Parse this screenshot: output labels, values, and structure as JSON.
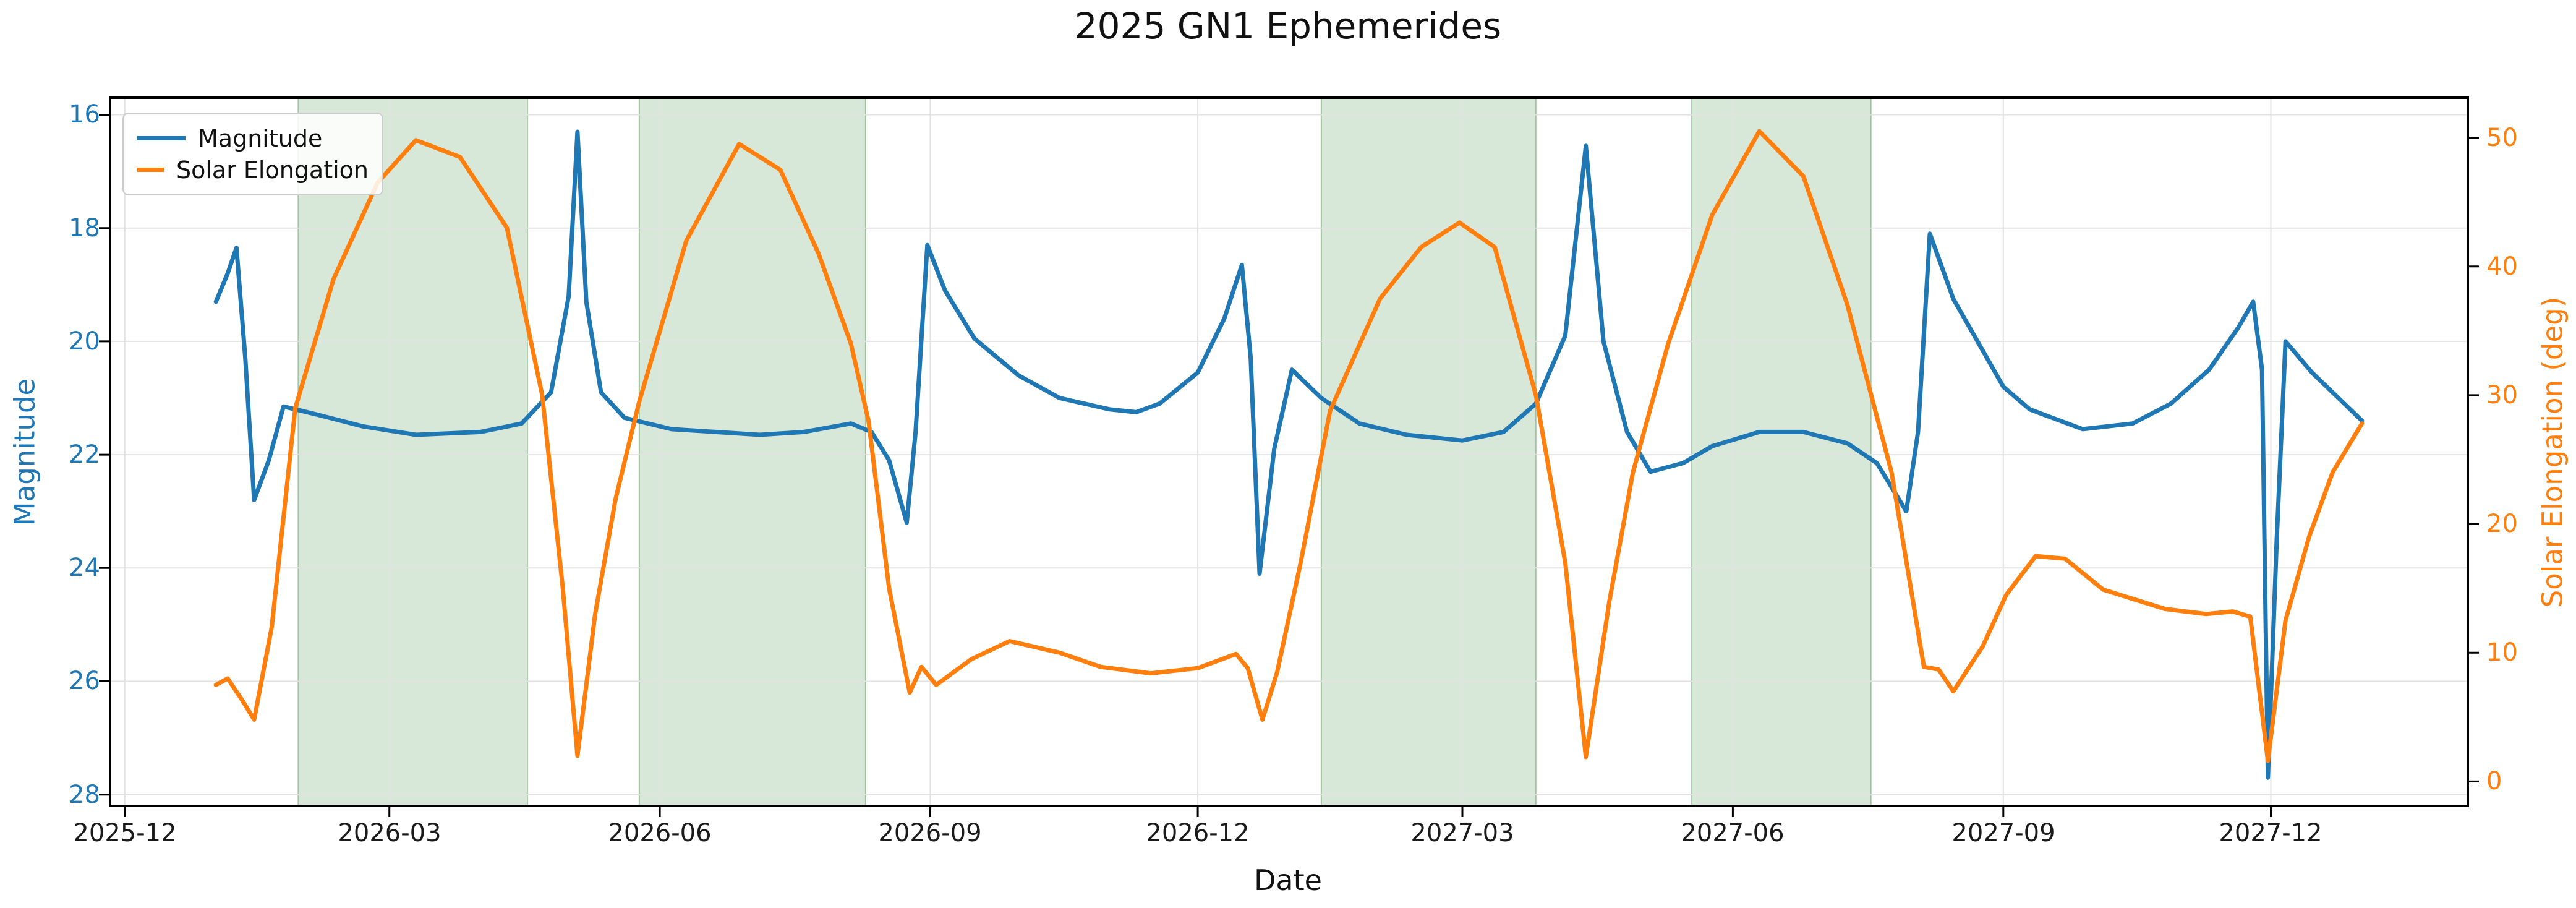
{
  "chart_data": {
    "type": "line",
    "title": "2025 GN1 Ephemerides",
    "xlabel": "Date",
    "ylabel_left": "Magnitude",
    "ylabel_right": "Solar Elongation (deg)",
    "legend": [
      "Magnitude",
      "Solar Elongation"
    ],
    "legend_position": "upper left",
    "grid": true,
    "colors": {
      "magnitude_line": "#1f77b4",
      "elongation_line": "#ff7f0e",
      "observing_window_fill": "rgba(60,140,60,0.20)",
      "observing_window_edge": "rgba(60,140,60,0.40)",
      "gridline": "#e2e2e2",
      "spine": "#000000"
    },
    "x_domain": [
      "2025-11-26",
      "2028-02-06"
    ],
    "x_ticks": [
      {
        "date": "2025-12-01",
        "label": "2025-12"
      },
      {
        "date": "2026-03-01",
        "label": "2026-03"
      },
      {
        "date": "2026-06-01",
        "label": "2026-06"
      },
      {
        "date": "2026-09-01",
        "label": "2026-09"
      },
      {
        "date": "2026-12-01",
        "label": "2026-12"
      },
      {
        "date": "2027-03-01",
        "label": "2027-03"
      },
      {
        "date": "2027-06-01",
        "label": "2027-06"
      },
      {
        "date": "2027-09-01",
        "label": "2027-09"
      },
      {
        "date": "2027-12-01",
        "label": "2027-12"
      }
    ],
    "mag_axis": {
      "top_value": 15.7,
      "bottom_value": 28.2,
      "inverted": true,
      "ticks": [
        16,
        18,
        20,
        22,
        24,
        26,
        28
      ]
    },
    "elong_axis": {
      "top_value": 53.1,
      "bottom_value": -1.9,
      "ticks": [
        0,
        10,
        20,
        30,
        40,
        50
      ]
    },
    "observing_windows": [
      [
        "2026-01-29",
        "2026-04-17"
      ],
      [
        "2026-05-25",
        "2026-08-10"
      ],
      [
        "2027-01-12",
        "2027-03-26"
      ],
      [
        "2027-05-18",
        "2027-07-18"
      ]
    ],
    "series": [
      {
        "name": "Magnitude",
        "axis": "left",
        "color": "#1f77b4",
        "points": [
          [
            "2026-01-01",
            19.3
          ],
          [
            "2026-01-05",
            18.8
          ],
          [
            "2026-01-08",
            18.35
          ],
          [
            "2026-01-11",
            20.3
          ],
          [
            "2026-01-14",
            22.8
          ],
          [
            "2026-01-19",
            22.1
          ],
          [
            "2026-01-24",
            21.15
          ],
          [
            "2026-02-05",
            21.3
          ],
          [
            "2026-02-20",
            21.5
          ],
          [
            "2026-03-10",
            21.65
          ],
          [
            "2026-04-01",
            21.6
          ],
          [
            "2026-04-15",
            21.45
          ],
          [
            "2026-04-25",
            20.9
          ],
          [
            "2026-05-01",
            19.2
          ],
          [
            "2026-05-04",
            16.3
          ],
          [
            "2026-05-07",
            19.3
          ],
          [
            "2026-05-12",
            20.9
          ],
          [
            "2026-05-20",
            21.35
          ],
          [
            "2026-06-05",
            21.55
          ],
          [
            "2026-06-20",
            21.6
          ],
          [
            "2026-07-05",
            21.65
          ],
          [
            "2026-07-20",
            21.6
          ],
          [
            "2026-08-05",
            21.45
          ],
          [
            "2026-08-12",
            21.6
          ],
          [
            "2026-08-18",
            22.1
          ],
          [
            "2026-08-24",
            23.2
          ],
          [
            "2026-08-27",
            21.6
          ],
          [
            "2026-08-31",
            18.3
          ],
          [
            "2026-09-06",
            19.1
          ],
          [
            "2026-09-16",
            19.95
          ],
          [
            "2026-10-01",
            20.6
          ],
          [
            "2026-10-15",
            21.0
          ],
          [
            "2026-11-01",
            21.2
          ],
          [
            "2026-11-10",
            21.25
          ],
          [
            "2026-11-18",
            21.1
          ],
          [
            "2026-12-01",
            20.55
          ],
          [
            "2026-12-10",
            19.6
          ],
          [
            "2026-12-16",
            18.65
          ],
          [
            "2026-12-19",
            20.3
          ],
          [
            "2026-12-22",
            24.1
          ],
          [
            "2026-12-27",
            21.9
          ],
          [
            "2027-01-02",
            20.5
          ],
          [
            "2027-01-12",
            21.0
          ],
          [
            "2027-01-25",
            21.45
          ],
          [
            "2027-02-10",
            21.65
          ],
          [
            "2027-03-01",
            21.75
          ],
          [
            "2027-03-15",
            21.6
          ],
          [
            "2027-03-26",
            21.1
          ],
          [
            "2027-04-05",
            19.9
          ],
          [
            "2027-04-12",
            16.55
          ],
          [
            "2027-04-18",
            20.0
          ],
          [
            "2027-04-26",
            21.6
          ],
          [
            "2027-05-04",
            22.3
          ],
          [
            "2027-05-15",
            22.15
          ],
          [
            "2027-05-25",
            21.85
          ],
          [
            "2027-06-10",
            21.6
          ],
          [
            "2027-06-25",
            21.6
          ],
          [
            "2027-07-10",
            21.8
          ],
          [
            "2027-07-20",
            22.15
          ],
          [
            "2027-07-30",
            23.0
          ],
          [
            "2027-08-03",
            21.6
          ],
          [
            "2027-08-07",
            18.1
          ],
          [
            "2027-08-15",
            19.25
          ],
          [
            "2027-09-01",
            20.8
          ],
          [
            "2027-09-10",
            21.2
          ],
          [
            "2027-09-28",
            21.55
          ],
          [
            "2027-10-15",
            21.45
          ],
          [
            "2027-10-28",
            21.1
          ],
          [
            "2027-11-10",
            20.5
          ],
          [
            "2027-11-20",
            19.75
          ],
          [
            "2027-11-25",
            19.3
          ],
          [
            "2027-11-28",
            20.5
          ],
          [
            "2027-11-30",
            27.7
          ],
          [
            "2027-12-03",
            23.5
          ],
          [
            "2027-12-06",
            20.0
          ],
          [
            "2027-12-15",
            20.55
          ],
          [
            "2027-12-24",
            21.0
          ],
          [
            "2028-01-01",
            21.4
          ]
        ]
      },
      {
        "name": "Solar Elongation",
        "axis": "right",
        "color": "#ff7f0e",
        "points": [
          [
            "2026-01-01",
            7.5
          ],
          [
            "2026-01-05",
            8.0
          ],
          [
            "2026-01-10",
            6.3
          ],
          [
            "2026-01-14",
            4.8
          ],
          [
            "2026-01-20",
            12.0
          ],
          [
            "2026-01-28",
            29.0
          ],
          [
            "2026-02-10",
            39.0
          ],
          [
            "2026-02-25",
            46.5
          ],
          [
            "2026-03-10",
            49.8
          ],
          [
            "2026-03-25",
            48.5
          ],
          [
            "2026-04-10",
            43.0
          ],
          [
            "2026-04-22",
            30.0
          ],
          [
            "2026-04-29",
            15.0
          ],
          [
            "2026-05-04",
            2.0
          ],
          [
            "2026-05-10",
            13.0
          ],
          [
            "2026-05-17",
            22.0
          ],
          [
            "2026-05-25",
            29.5
          ],
          [
            "2026-06-10",
            42.0
          ],
          [
            "2026-06-28",
            49.5
          ],
          [
            "2026-07-12",
            47.5
          ],
          [
            "2026-07-25",
            41.0
          ],
          [
            "2026-08-05",
            34.0
          ],
          [
            "2026-08-11",
            28.0
          ],
          [
            "2026-08-18",
            15.0
          ],
          [
            "2026-08-25",
            6.9
          ],
          [
            "2026-08-29",
            8.9
          ],
          [
            "2026-09-03",
            7.5
          ],
          [
            "2026-09-15",
            9.5
          ],
          [
            "2026-09-28",
            10.9
          ],
          [
            "2026-10-15",
            10.0
          ],
          [
            "2026-10-29",
            8.9
          ],
          [
            "2026-11-15",
            8.4
          ],
          [
            "2026-12-01",
            8.8
          ],
          [
            "2026-12-14",
            9.9
          ],
          [
            "2026-12-18",
            8.8
          ],
          [
            "2026-12-23",
            4.8
          ],
          [
            "2026-12-28",
            8.5
          ],
          [
            "2027-01-05",
            17.0
          ],
          [
            "2027-01-15",
            28.8
          ],
          [
            "2027-02-01",
            37.5
          ],
          [
            "2027-02-15",
            41.5
          ],
          [
            "2027-02-28",
            43.4
          ],
          [
            "2027-03-12",
            41.5
          ],
          [
            "2027-03-26",
            30.0
          ],
          [
            "2027-04-05",
            17.0
          ],
          [
            "2027-04-12",
            1.9
          ],
          [
            "2027-04-20",
            14.0
          ],
          [
            "2027-04-28",
            24.0
          ],
          [
            "2027-05-10",
            34.0
          ],
          [
            "2027-05-25",
            44.0
          ],
          [
            "2027-06-10",
            50.5
          ],
          [
            "2027-06-25",
            47.0
          ],
          [
            "2027-07-10",
            37.0
          ],
          [
            "2027-07-25",
            24.0
          ],
          [
            "2027-08-05",
            8.9
          ],
          [
            "2027-08-10",
            8.7
          ],
          [
            "2027-08-15",
            7.0
          ],
          [
            "2027-08-25",
            10.5
          ],
          [
            "2027-09-02",
            14.5
          ],
          [
            "2027-09-12",
            17.5
          ],
          [
            "2027-09-22",
            17.3
          ],
          [
            "2027-10-05",
            14.9
          ],
          [
            "2027-10-26",
            13.4
          ],
          [
            "2027-11-09",
            13.0
          ],
          [
            "2027-11-18",
            13.2
          ],
          [
            "2027-11-24",
            12.8
          ],
          [
            "2027-11-30",
            1.6
          ],
          [
            "2027-12-06",
            12.5
          ],
          [
            "2027-12-14",
            19.0
          ],
          [
            "2027-12-22",
            24.0
          ],
          [
            "2028-01-01",
            27.8
          ]
        ]
      }
    ]
  }
}
